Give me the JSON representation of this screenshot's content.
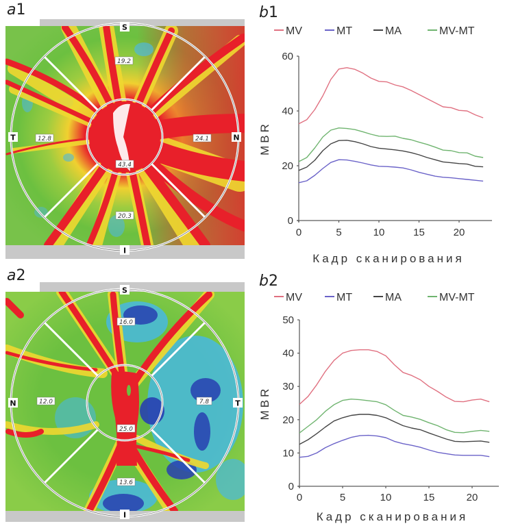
{
  "panels": {
    "a1": {
      "label_letter": "a",
      "label_num": "1",
      "directions": {
        "top": "S",
        "bottom": "I",
        "left": "T",
        "right": "N"
      },
      "sector_values": {
        "superior": "19.2",
        "inferior": "20.3",
        "left": "12.8",
        "right": "24.1",
        "center": "43.4"
      }
    },
    "a2": {
      "label_letter": "a",
      "label_num": "2",
      "directions": {
        "top": "S",
        "bottom": "I",
        "left": "N",
        "right": "T"
      },
      "sector_values": {
        "superior": "16.0",
        "inferior": "13.6",
        "left": "12.0",
        "right": "7.8",
        "center": "25.0"
      }
    }
  },
  "colors": {
    "MV": "#e07080",
    "MT": "#6a62c8",
    "MA": "#444444",
    "MV-MT": "#6fb46f",
    "map_red": "#e8202a",
    "map_yellow": "#f0e030",
    "map_green": "#6cc040",
    "map_cyan": "#40b8e0",
    "map_blue": "#2840b0",
    "band_gray": "#c8c8c8"
  },
  "chart_data": [
    {
      "id": "b1",
      "type": "line",
      "panel_label_letter": "b",
      "panel_label_num": "1",
      "title": "",
      "xlabel": "Кадр сканирования",
      "ylabel": "MBR",
      "xlim": [
        0,
        24
      ],
      "ylim": [
        0,
        60
      ],
      "xticks": [
        0,
        5,
        10,
        15,
        20
      ],
      "yticks": [
        0,
        20,
        40,
        60
      ],
      "grid": false,
      "legend_position": "top",
      "legend": [
        "MV",
        "MT",
        "MA",
        "MV-MT"
      ],
      "x": [
        0,
        1,
        2,
        3,
        4,
        5,
        6,
        7,
        8,
        9,
        10,
        11,
        12,
        13,
        14,
        15,
        16,
        17,
        18,
        19,
        20,
        21,
        22,
        23
      ],
      "series": [
        {
          "name": "MV",
          "values": [
            35.3,
            36.8,
            40.5,
            45.5,
            51.5,
            55.3,
            55.8,
            55.2,
            53.8,
            52.0,
            50.8,
            50.6,
            49.5,
            48.8,
            47.5,
            46.0,
            44.5,
            43.0,
            41.5,
            41.2,
            40.2,
            40.0,
            38.6,
            37.5
          ]
        },
        {
          "name": "MT",
          "values": [
            13.8,
            14.5,
            16.5,
            19.0,
            21.2,
            22.2,
            22.1,
            21.6,
            21.0,
            20.3,
            19.8,
            19.7,
            19.5,
            19.2,
            18.5,
            17.6,
            16.9,
            16.2,
            15.8,
            15.6,
            15.3,
            15.0,
            14.7,
            14.4
          ]
        },
        {
          "name": "MA",
          "values": [
            18.3,
            19.5,
            22.0,
            25.5,
            28.0,
            29.2,
            29.3,
            28.8,
            28.0,
            27.0,
            26.4,
            26.1,
            25.8,
            25.4,
            24.8,
            24.0,
            23.0,
            22.2,
            21.4,
            21.1,
            20.8,
            20.6,
            19.8,
            19.6
          ]
        },
        {
          "name": "MV-MT",
          "values": [
            21.5,
            23.0,
            26.5,
            30.5,
            33.0,
            33.8,
            33.6,
            33.2,
            32.4,
            31.5,
            30.8,
            30.7,
            30.8,
            30.0,
            29.5,
            28.6,
            27.8,
            26.8,
            25.7,
            25.5,
            24.8,
            24.7,
            23.5,
            23.0
          ]
        }
      ]
    },
    {
      "id": "b2",
      "type": "line",
      "panel_label_letter": "b",
      "panel_label_num": "2",
      "title": "",
      "xlabel": "Кадр сканирования",
      "ylabel": "MBR",
      "xlim": [
        0,
        23
      ],
      "ylim": [
        0,
        50
      ],
      "xticks": [
        0,
        5,
        10,
        15,
        20
      ],
      "yticks": [
        0,
        10,
        20,
        30,
        40,
        50
      ],
      "grid": false,
      "legend_position": "top",
      "legend": [
        "MV",
        "MT",
        "MA",
        "MV-MT"
      ],
      "x": [
        0,
        1,
        2,
        3,
        4,
        5,
        6,
        7,
        8,
        9,
        10,
        11,
        12,
        13,
        14,
        15,
        16,
        17,
        18,
        19,
        20,
        21,
        22
      ],
      "series": [
        {
          "name": "MV",
          "values": [
            24.6,
            27.0,
            30.5,
            34.5,
            37.8,
            40.0,
            40.8,
            41.0,
            41.0,
            40.5,
            39.2,
            36.5,
            34.2,
            33.3,
            32.0,
            30.0,
            28.5,
            26.8,
            25.5,
            25.4,
            25.9,
            26.2,
            25.4
          ]
        },
        {
          "name": "MT",
          "values": [
            8.7,
            9.0,
            10.0,
            11.6,
            12.8,
            13.8,
            14.7,
            15.2,
            15.3,
            15.1,
            14.6,
            13.5,
            12.8,
            12.3,
            11.7,
            10.9,
            10.2,
            9.8,
            9.4,
            9.3,
            9.3,
            9.3,
            8.9
          ]
        },
        {
          "name": "MA",
          "values": [
            12.6,
            14.0,
            15.8,
            17.8,
            19.6,
            20.6,
            21.3,
            21.6,
            21.6,
            21.3,
            20.6,
            19.4,
            18.2,
            17.5,
            17.0,
            16.0,
            15.1,
            14.2,
            13.5,
            13.4,
            13.5,
            13.6,
            13.2
          ]
        },
        {
          "name": "MV-MT",
          "values": [
            16.0,
            18.0,
            20.0,
            22.5,
            24.5,
            25.8,
            26.2,
            26.0,
            25.7,
            25.4,
            24.5,
            22.8,
            21.3,
            20.8,
            20.1,
            19.1,
            18.2,
            17.0,
            16.2,
            16.1,
            16.5,
            16.8,
            16.5
          ]
        }
      ]
    }
  ]
}
